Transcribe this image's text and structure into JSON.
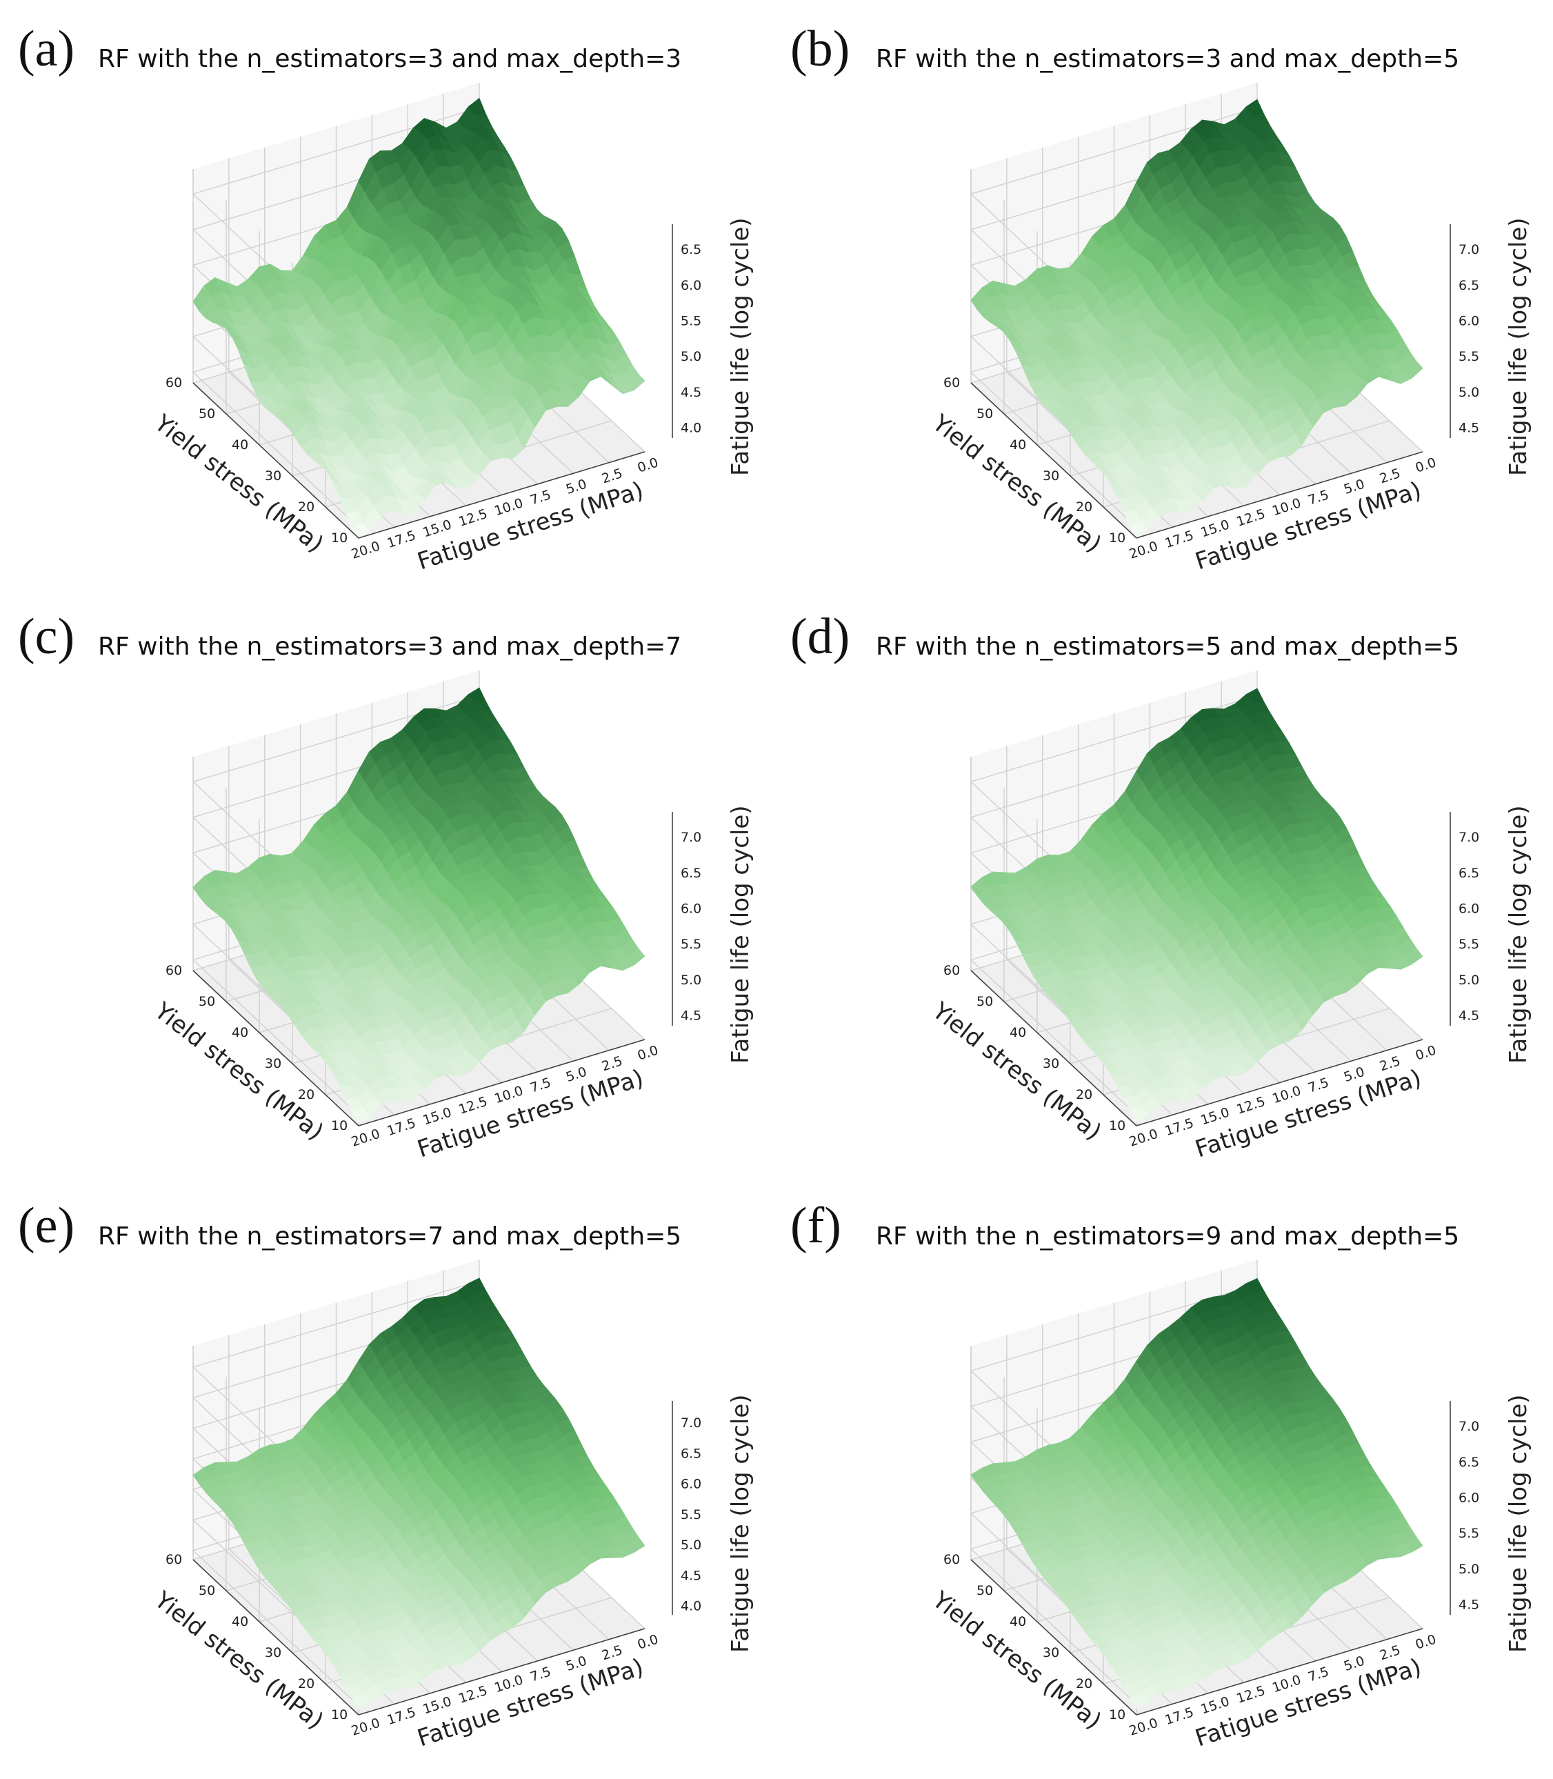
{
  "figure": {
    "panels": [
      {
        "letter": "(a)",
        "title": "RF with the n_estimators=3 and max_depth=3"
      },
      {
        "letter": "(b)",
        "title": "RF with the n_estimators=3 and max_depth=5"
      },
      {
        "letter": "(c)",
        "title": "RF with the n_estimators=3 and max_depth=7"
      },
      {
        "letter": "(d)",
        "title": "RF with the n_estimators=5 and max_depth=5"
      },
      {
        "letter": "(e)",
        "title": "RF with the n_estimators=7 and max_depth=5"
      },
      {
        "letter": "(f)",
        "title": "RF with the n_estimators=9 and max_depth=5"
      }
    ]
  },
  "colors": {
    "low": "#f7fcf5",
    "mid": "#74c476",
    "high": "#00441b",
    "grid": "#d0d0d0",
    "pane": "#f2f2f2"
  },
  "chart_data": [
    {
      "type": "surface",
      "title": "RF with the n_estimators=3 and max_depth=3",
      "xlabel": "Fatigue stress (MPa)",
      "ylabel": "Yield stress (MPa)",
      "zlabel": "Fatigue life (log cycle)",
      "xlim": [
        0,
        20
      ],
      "ylim": [
        10,
        60
      ],
      "zlim": [
        4.0,
        6.9
      ],
      "x_ticks": [
        "0.0",
        "2.5",
        "5.0",
        "7.5",
        "10.0",
        "12.5",
        "15.0",
        "17.5",
        "20.0"
      ],
      "y_ticks": [
        "10",
        "20",
        "30",
        "40",
        "50",
        "60"
      ],
      "z_ticks": [
        "4.0",
        "4.5",
        "5.0",
        "5.5",
        "6.0",
        "6.5"
      ],
      "peak_fatigue_life": 6.85,
      "min_fatigue_life": 4.0,
      "colormap": "Greens"
    },
    {
      "type": "surface",
      "title": "RF with the n_estimators=3 and max_depth=5",
      "xlabel": "Fatigue stress (MPa)",
      "ylabel": "Yield stress (MPa)",
      "zlabel": "Fatigue life (log cycle)",
      "xlim": [
        0,
        20
      ],
      "ylim": [
        10,
        60
      ],
      "zlim": [
        4.2,
        7.1
      ],
      "x_ticks": [
        "0.0",
        "2.5",
        "5.0",
        "7.5",
        "10.0",
        "12.5",
        "15.0",
        "17.5",
        "20.0"
      ],
      "y_ticks": [
        "10",
        "20",
        "30",
        "40",
        "50",
        "60"
      ],
      "z_ticks": [
        "4.5",
        "5.0",
        "5.5",
        "6.0",
        "6.5",
        "7.0"
      ],
      "peak_fatigue_life": 7.05,
      "min_fatigue_life": 4.2,
      "colormap": "Greens"
    },
    {
      "type": "surface",
      "title": "RF with the n_estimators=3 and max_depth=7",
      "xlabel": "Fatigue stress (MPa)",
      "ylabel": "Yield stress (MPa)",
      "zlabel": "Fatigue life (log cycle)",
      "xlim": [
        0,
        20
      ],
      "ylim": [
        10,
        60
      ],
      "zlim": [
        4.2,
        7.1
      ],
      "x_ticks": [
        "0.0",
        "2.5",
        "5.0",
        "7.5",
        "10.0",
        "12.5",
        "15.0",
        "17.5",
        "20.0"
      ],
      "y_ticks": [
        "10",
        "20",
        "30",
        "40",
        "50",
        "60"
      ],
      "z_ticks": [
        "4.5",
        "5.0",
        "5.5",
        "6.0",
        "6.5",
        "7.0"
      ],
      "peak_fatigue_life": 7.05,
      "min_fatigue_life": 4.2,
      "colormap": "Greens"
    },
    {
      "type": "surface",
      "title": "RF with the n_estimators=5 and max_depth=5",
      "xlabel": "Fatigue stress (MPa)",
      "ylabel": "Yield stress (MPa)",
      "zlabel": "Fatigue life (log cycle)",
      "xlim": [
        0,
        20
      ],
      "ylim": [
        10,
        60
      ],
      "zlim": [
        4.2,
        7.1
      ],
      "x_ticks": [
        "0.0",
        "2.5",
        "5.0",
        "7.5",
        "10.0",
        "12.5",
        "15.0",
        "17.5",
        "20.0"
      ],
      "y_ticks": [
        "10",
        "20",
        "30",
        "40",
        "50",
        "60"
      ],
      "z_ticks": [
        "4.5",
        "5.0",
        "5.5",
        "6.0",
        "6.5",
        "7.0"
      ],
      "peak_fatigue_life": 7.05,
      "min_fatigue_life": 4.2,
      "colormap": "Greens"
    },
    {
      "type": "surface",
      "title": "RF with the n_estimators=7 and max_depth=5",
      "xlabel": "Fatigue stress (MPa)",
      "ylabel": "Yield stress (MPa)",
      "zlabel": "Fatigue life (log cycle)",
      "xlim": [
        0,
        20
      ],
      "ylim": [
        10,
        60
      ],
      "zlim": [
        4.0,
        7.1
      ],
      "x_ticks": [
        "0.0",
        "2.5",
        "5.0",
        "7.5",
        "10.0",
        "12.5",
        "15.0",
        "17.5",
        "20.0"
      ],
      "y_ticks": [
        "10",
        "20",
        "30",
        "40",
        "50",
        "60"
      ],
      "z_ticks": [
        "4.0",
        "4.5",
        "5.0",
        "5.5",
        "6.0",
        "6.5",
        "7.0"
      ],
      "peak_fatigue_life": 7.05,
      "min_fatigue_life": 4.0,
      "colormap": "Greens"
    },
    {
      "type": "surface",
      "title": "RF with the n_estimators=9 and max_depth=5",
      "xlabel": "Fatigue stress (MPa)",
      "ylabel": "Yield stress (MPa)",
      "zlabel": "Fatigue life (log cycle)",
      "xlim": [
        0,
        20
      ],
      "ylim": [
        10,
        60
      ],
      "zlim": [
        4.2,
        7.1
      ],
      "x_ticks": [
        "0.0",
        "2.5",
        "5.0",
        "7.5",
        "10.0",
        "12.5",
        "15.0",
        "17.5",
        "20.0"
      ],
      "y_ticks": [
        "10",
        "20",
        "30",
        "40",
        "50",
        "60"
      ],
      "z_ticks": [
        "4.5",
        "5.0",
        "5.5",
        "6.0",
        "6.5",
        "7.0"
      ],
      "peak_fatigue_life": 7.05,
      "min_fatigue_life": 4.2,
      "colormap": "Greens"
    }
  ]
}
